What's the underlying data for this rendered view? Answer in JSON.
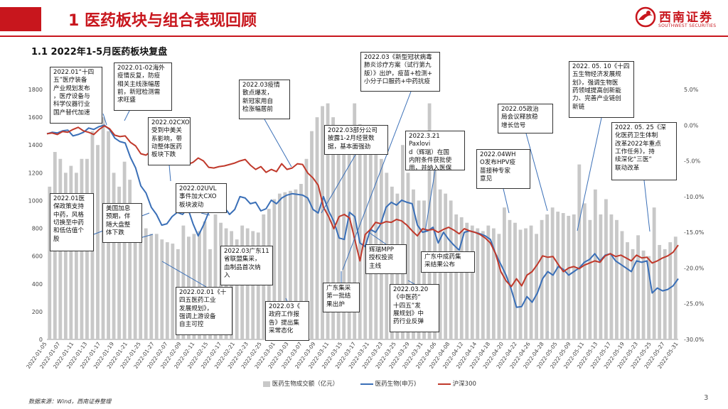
{
  "header": {
    "title": "1 医药板块与组合表现回顾",
    "logo_name": "西南证券",
    "logo_en": "SOUTHWEST SECURITIES",
    "brand_color": "#c8161d"
  },
  "subtitle": "1.1 2022年1-5月医药板块复盘",
  "footnote": "数据来源：Wind，西南证券整理",
  "page_number": "3",
  "chart_data": {
    "type": "bar+line",
    "x_tick_labels": [
      "2022-01-05",
      "2022-01-07",
      "2022-01-11",
      "2022-01-13",
      "2022-01-17",
      "2022-01-19",
      "2022-01-21",
      "2022-01-25",
      "2022-01-27",
      "2022-02-07",
      "2022-02-09",
      "2022-02-11",
      "2022-02-15",
      "2022-02-17",
      "2022-02-21",
      "2022-02-23",
      "2022-02-25",
      "2022-03-01",
      "2022-03-03",
      "2022-03-07",
      "2022-03-09",
      "2022-03-11",
      "2022-03-15",
      "2022-03-17",
      "2022-03-21",
      "2022-03-23",
      "2022-03-25",
      "2022-03-29",
      "2022-03-31",
      "2022-04-06",
      "2022-04-08",
      "2022-04-12",
      "2022-04-14",
      "2022-04-18",
      "2022-04-20",
      "2022-04-22",
      "2022-04-26",
      "2022-04-28",
      "2022-05-05",
      "2022-05-09",
      "2022-05-11",
      "2022-05-13",
      "2022-05-17",
      "2022-05-19",
      "2022-05-23",
      "2022-05-25",
      "2022-05-27",
      "2022-05-31"
    ],
    "left_axis": {
      "min": 0,
      "max": 1800,
      "ticks": [
        "0",
        "200",
        "400",
        "600",
        "800",
        "1000",
        "1200",
        "1400",
        "1600",
        "1800"
      ]
    },
    "right_axis": {
      "min": -30,
      "max": 5,
      "ticks": [
        "-30.0%",
        "-25.0%",
        "-20.0%",
        "-15.0%",
        "-10.0%",
        "-5.0%",
        "0.0%",
        "5.0%"
      ]
    },
    "series": [
      {
        "name": "医药生物成交额（亿元）",
        "kind": "bar",
        "axis": "left",
        "color": "#c8c8c8",
        "values": [
          1100,
          1350,
          1300,
          1200,
          1250,
          1200,
          1300,
          1300,
          1500,
          1400,
          1600,
          1500,
          1200,
          1100,
          1280,
          1150,
          950,
          780,
          800,
          760,
          760,
          720,
          700,
          690,
          650,
          820,
          740,
          760,
          780,
          850,
          650,
          900,
          840,
          800,
          780,
          720,
          820,
          800,
          780,
          770,
          900,
          940,
          1010,
          1050,
          1060,
          1070,
          1080,
          1120,
          1300,
          1500,
          1600,
          1680,
          1700,
          1600,
          1520,
          1400,
          1350,
          1700,
          1550,
          1400,
          1450,
          1520,
          1300,
          1200,
          1100,
          1050,
          1400,
          1200,
          1080,
          1000,
          1000,
          1700,
          1250,
          1080,
          1050,
          1000,
          900,
          880,
          840,
          820,
          800,
          780,
          820,
          800,
          760,
          950,
          860,
          840,
          790,
          800,
          820,
          760,
          860,
          900,
          950,
          920,
          910,
          890,
          900,
          1260,
          980,
          860,
          1080,
          900,
          1010,
          900,
          860,
          780,
          700,
          650,
          750,
          640,
          600,
          950,
          680,
          650,
          700,
          740
        ]
      },
      {
        "name": "医药生物(申万)",
        "kind": "line",
        "axis": "right",
        "color": "#3a6fb7",
        "values": [
          -1.2,
          -1.0,
          -1.1,
          -0.8,
          -0.7,
          -1.5,
          -1.3,
          -1.0,
          -0.4,
          -0.6,
          -0.2,
          0.0,
          -0.6,
          -1.8,
          -2.3,
          -2.5,
          -4.5,
          -6.0,
          -8.5,
          -9.5,
          -11.5,
          -12.5,
          -14.0,
          -13.8,
          -12.8,
          -12.2,
          -12.5,
          -11.6,
          -13.8,
          -15.5,
          -14.0,
          -12.2,
          -11.6,
          -12.0,
          -11.5,
          -12.5,
          -11.8,
          -10.0,
          -10.2,
          -11.0,
          -10.8,
          -12.0,
          -11.7,
          -10.5,
          -11.0,
          -10.2,
          -9.8,
          -9.6,
          -9.7,
          -9.8,
          -10.2,
          -11.8,
          -12.3,
          -10.0,
          -12.0,
          -13.5,
          -15.8,
          -16.0,
          -12.2,
          -12.8,
          -16.5,
          -17.0,
          -14.6,
          -15.0,
          -13.8,
          -11.5,
          -10.8,
          -11.2,
          -10.5,
          -10.8,
          -11.0,
          -14.0,
          -15.0,
          -14.8,
          -14.3,
          -16.5,
          -15.0,
          -16.0,
          -16.8,
          -17.5,
          -15.0,
          -14.8,
          -15.0,
          -15.2,
          -15.5,
          -16.0,
          -18.0,
          -19.5,
          -21.0,
          -23.0,
          -25.5,
          -25.4,
          -24.0,
          -24.8,
          -23.5,
          -21.5,
          -20.5,
          -21.0,
          -19.8,
          -20.2,
          -21.0,
          -20.5,
          -20.0,
          -19.2,
          -18.8,
          -18.0,
          -19.0,
          -18.2,
          -18.0,
          -19.0,
          -19.5,
          -20.0,
          -20.5,
          -19.0,
          -19.2,
          -19.0,
          -23.5,
          -22.8,
          -23.2,
          -23.0,
          -22.5,
          -21.5
        ]
      },
      {
        "name": "沪深300",
        "kind": "line",
        "axis": "right",
        "color": "#c0392b",
        "values": [
          -1.2,
          -1.1,
          -1.3,
          -0.9,
          -1.0,
          -0.6,
          -0.3,
          -0.8,
          -1.0,
          -1.3,
          -0.6,
          -0.1,
          -0.5,
          -1.4,
          -1.6,
          -1.5,
          -2.4,
          -2.9,
          -4.0,
          -4.2,
          -3.6,
          -3.8,
          -4.0,
          -4.3,
          -3.6,
          -3.4,
          -4.1,
          -5.5,
          -5.2,
          -4.6,
          -5.0,
          -5.9,
          -6.0,
          -5.8,
          -5.7,
          -5.5,
          -5.3,
          -5.0,
          -4.8,
          -5.6,
          -6.2,
          -5.8,
          -6.6,
          -6.2,
          -6.5,
          -5.4,
          -6.2,
          -6.0,
          -5.4,
          -5.5,
          -6.7,
          -7.4,
          -8.4,
          -11.5,
          -12.8,
          -14.5,
          -12.8,
          -12.5,
          -13.0,
          -16.0,
          -19.0,
          -15.3,
          -14.6,
          -13.6,
          -13.8,
          -13.5,
          -13.6,
          -13.2,
          -13.4,
          -14.0,
          -14.8,
          -15.5,
          -14.5,
          -14.7,
          -14.6,
          -15.0,
          -14.6,
          -14.3,
          -14.7,
          -15.2,
          -14.5,
          -14.8,
          -15.0,
          -15.3,
          -15.8,
          -16.5,
          -18.0,
          -20.5,
          -21.8,
          -22.6,
          -21.5,
          -22.5,
          -21.0,
          -20.5,
          -19.5,
          -18.3,
          -18.5,
          -18.4,
          -19.5,
          -20.5,
          -20.0,
          -19.8,
          -20.1,
          -19.6,
          -19.3,
          -19.0,
          -19.2,
          -18.3,
          -18.0,
          -18.4,
          -18.2,
          -18.6,
          -19.0,
          -18.2,
          -18.6,
          -18.5,
          -19.3,
          -19.0,
          -18.6,
          -18.3,
          -17.8,
          -16.8
        ]
      }
    ],
    "legend_placement": "bottom-center",
    "grid": false
  },
  "annotations": [
    {
      "id": "a1",
      "text": "2022.01“十四\n五”医疗装备\n产业规划发布\n，医疗设备与\n科学仪器行业\n国产替代加速"
    },
    {
      "id": "a2",
      "text": "2022.01-02海外\n疫情反复，防疫\n相关主线涨幅居\n前，新冠检测需\n求旺盛"
    },
    {
      "id": "a3",
      "text": "2022.02CXO\n受到中美关\n系影响，带\n动整体医药\n板块下跌"
    },
    {
      "id": "a4",
      "text": "2022.01医\n保政策支持\n中药，风格\n切换至中药\n和低估值个\n股"
    },
    {
      "id": "a5",
      "text": "美国加息\n预期，伴\n随大盘整\n体下跌"
    },
    {
      "id": "a6",
      "text": "2022.02UVL\n事件加大CXO\n板块波动"
    },
    {
      "id": "a7",
      "text": "2022.03疫情\n散点爆发，\n新冠家用自\n检涨幅居前"
    },
    {
      "id": "a8",
      "text": "2022.03广东11\n省联盟集采，\n血制品首次纳\n入"
    },
    {
      "id": "a9",
      "text": "2022.02.01《十\n四五医药工业\n发展规划》，\n强调上游设备\n自主可控"
    },
    {
      "id": "a10",
      "text": "2022.03《\n政府工作报\n告》提出集\n采常态化"
    },
    {
      "id": "a11",
      "text": "2022.03《新型冠状病毒\n肺炎诊疗方案（试行第九\n版）》出炉，疫苗+检测+\n小分子口服药+中药抗疫"
    },
    {
      "id": "a12",
      "text": "2022.03部分公司\n披露1-2月经营数\n据，基本面强劲"
    },
    {
      "id": "a13",
      "text": "2022.3.21 Paxlovi\nd（辉瑞）在国\n内附条件获批使\n用，并纳入医保"
    },
    {
      "id": "a14",
      "text": "辉瑞MPP\n授权投资\n主线"
    },
    {
      "id": "a15",
      "text": "广东集采\n第一批结\n果出炉"
    },
    {
      "id": "a16",
      "text": "2022.03.20\n《中医药“\n十四五”发\n展规划》中\n药行业反弹"
    },
    {
      "id": "a17",
      "text": "广东中成药集\n采结果公布"
    },
    {
      "id": "a18",
      "text": "2022.04WH\nO发布HPV疫\n苗接种专家\n意见"
    },
    {
      "id": "a19",
      "text": "2022.05政治\n局会议释放稳\n增长信号"
    },
    {
      "id": "a20",
      "text": "2022. 05. 10《十四\n五生物经济发展规\n划》，强调生物医\n药领域提高创新能\n力、完善产业链创\n新链"
    },
    {
      "id": "a21",
      "text": "2022. 05. 25《深\n化医药卫生体制\n改革2022年重点\n工作任务》，持\n续深化“三医”\n联动改革"
    }
  ]
}
